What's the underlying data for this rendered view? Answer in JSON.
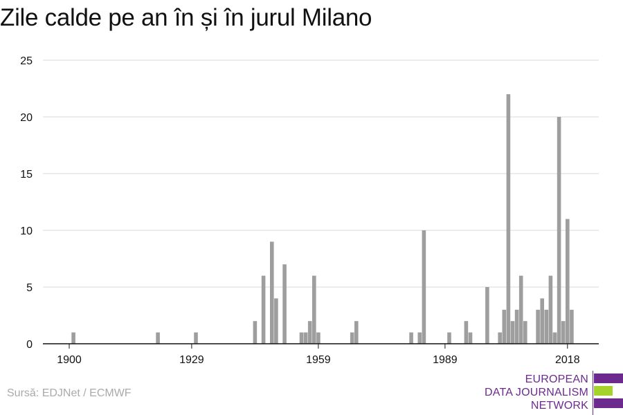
{
  "title": "Zile calde pe an în și în jurul Milano",
  "source": "Sursă: EDJNet / ECMWF",
  "logo": {
    "lines": [
      "EUROPEAN",
      "DATA JOURNALISM",
      "NETWORK"
    ],
    "colors": {
      "purple": "#6c2a8f",
      "green": "#a5d22b"
    }
  },
  "colors": {
    "bar": "#9e9e9e",
    "grid": "#d9d9d9",
    "axis": "#111111"
  },
  "chart_data": {
    "type": "bar",
    "title": "Zile calde pe an în și în jurul Milano",
    "xlabel": "",
    "ylabel": "",
    "ylim": [
      0,
      25
    ],
    "y_ticks": [
      0,
      5,
      10,
      15,
      20,
      25
    ],
    "x_ticks": [
      1900,
      1929,
      1959,
      1989,
      2018
    ],
    "grid": true,
    "x": [
      1900,
      1901,
      1902,
      1903,
      1904,
      1905,
      1906,
      1907,
      1908,
      1909,
      1910,
      1911,
      1912,
      1913,
      1914,
      1915,
      1916,
      1917,
      1918,
      1919,
      1920,
      1921,
      1922,
      1923,
      1924,
      1925,
      1926,
      1927,
      1928,
      1929,
      1930,
      1931,
      1932,
      1933,
      1934,
      1935,
      1936,
      1937,
      1938,
      1939,
      1940,
      1941,
      1942,
      1943,
      1944,
      1945,
      1946,
      1947,
      1948,
      1949,
      1950,
      1951,
      1952,
      1953,
      1954,
      1955,
      1956,
      1957,
      1958,
      1959,
      1960,
      1961,
      1962,
      1963,
      1964,
      1965,
      1966,
      1967,
      1968,
      1969,
      1970,
      1971,
      1972,
      1973,
      1974,
      1975,
      1976,
      1977,
      1978,
      1979,
      1980,
      1981,
      1982,
      1983,
      1984,
      1985,
      1986,
      1987,
      1988,
      1989,
      1990,
      1991,
      1992,
      1993,
      1994,
      1995,
      1996,
      1997,
      1998,
      1999,
      2000,
      2001,
      2002,
      2003,
      2004,
      2005,
      2006,
      2007,
      2008,
      2009,
      2010,
      2011,
      2012,
      2013,
      2014,
      2015,
      2016,
      2017,
      2018,
      2019
    ],
    "values": [
      0,
      1,
      0,
      0,
      0,
      0,
      0,
      0,
      0,
      0,
      0,
      0,
      0,
      0,
      0,
      0,
      0,
      0,
      0,
      0,
      0,
      1,
      0,
      0,
      0,
      0,
      0,
      0,
      0,
      0,
      1,
      0,
      0,
      0,
      0,
      0,
      0,
      0,
      0,
      0,
      0,
      0,
      0,
      0,
      2,
      0,
      6,
      0,
      9,
      4,
      0,
      7,
      0,
      0,
      0,
      1,
      1,
      2,
      6,
      1,
      0,
      0,
      0,
      0,
      0,
      0,
      0,
      1,
      2,
      0,
      0,
      0,
      0,
      0,
      0,
      0,
      0,
      0,
      0,
      0,
      0,
      1,
      0,
      1,
      10,
      0,
      0,
      0,
      0,
      0,
      1,
      0,
      0,
      0,
      2,
      1,
      0,
      0,
      0,
      5,
      0,
      0,
      1,
      3,
      22,
      2,
      3,
      6,
      2,
      0,
      0,
      3,
      4,
      3,
      6,
      1,
      20,
      2,
      11,
      3
    ]
  }
}
